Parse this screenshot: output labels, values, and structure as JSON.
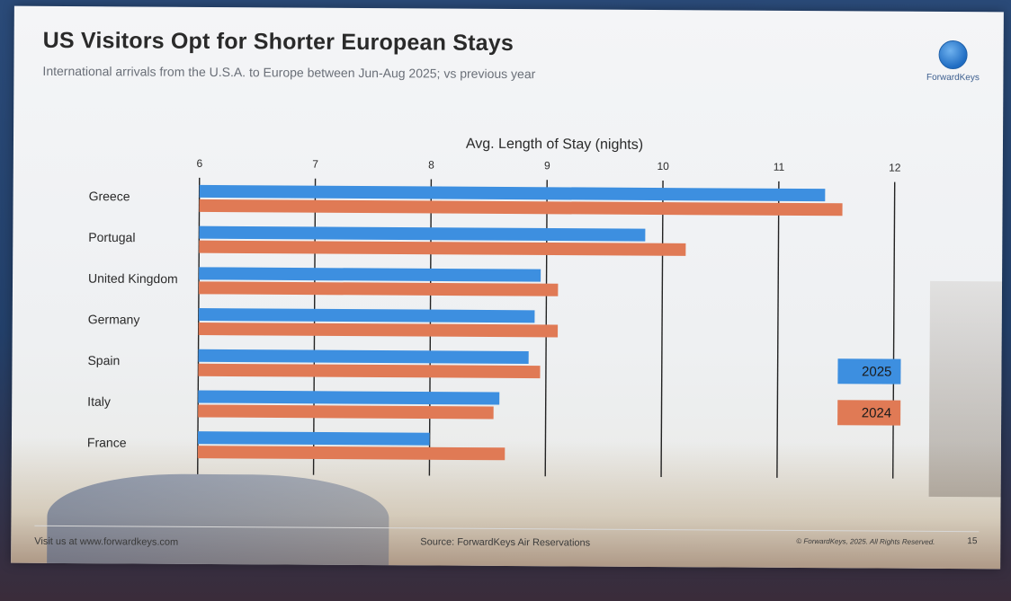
{
  "slide": {
    "title": "US Visitors Opt for Shorter European Stays",
    "subtitle": "International arrivals from the U.S.A. to Europe between Jun-Aug 2025; vs previous year",
    "logo_text": "ForwardKeys",
    "footer_left": "Visit us at www.forwardkeys.com",
    "footer_mid": "Source: ForwardKeys Air Reservations",
    "footer_right": "© ForwardKeys, 2025. All Rights Reserved.",
    "page_number": "15"
  },
  "colors": {
    "series_2025": "#3d8fe0",
    "series_2024": "#e07a55",
    "grid": "#222222"
  },
  "chart_data": {
    "type": "bar",
    "orientation": "horizontal",
    "title": "Avg. Length of Stay (nights)",
    "categories": [
      "Greece",
      "Portugal",
      "United Kingdom",
      "Germany",
      "Spain",
      "Italy",
      "France"
    ],
    "series": [
      {
        "name": "2025",
        "values": [
          11.4,
          9.85,
          8.95,
          8.9,
          8.85,
          8.6,
          8.0
        ]
      },
      {
        "name": "2024",
        "values": [
          11.55,
          10.2,
          9.1,
          9.1,
          8.95,
          8.55,
          8.65
        ]
      }
    ],
    "xlim": [
      6,
      12
    ],
    "xticks": [
      "6",
      "7",
      "8",
      "9",
      "10",
      "11",
      "12"
    ],
    "grid": true,
    "legend_position": "right"
  }
}
